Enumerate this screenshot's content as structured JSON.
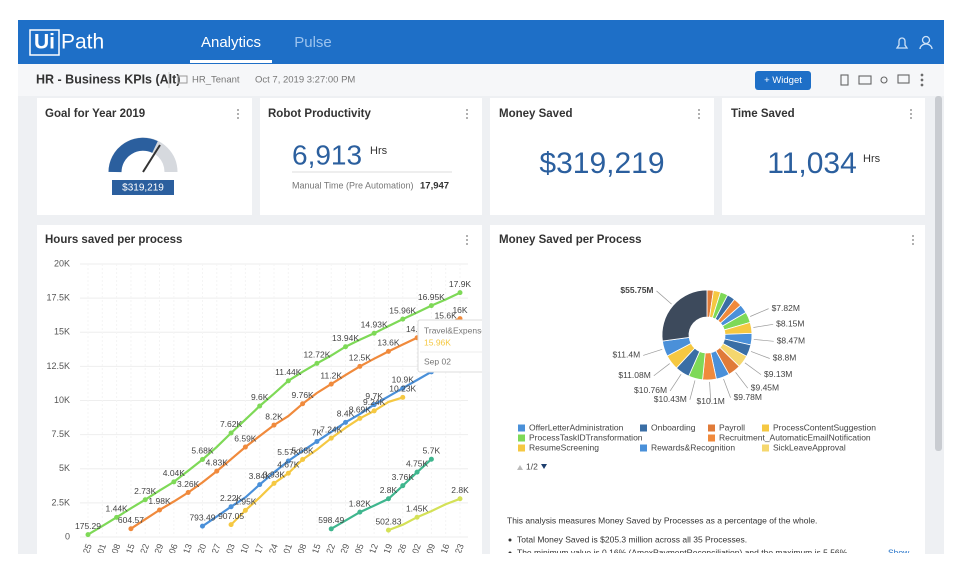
{
  "header": {
    "logo_a": "Ui",
    "logo_b": "Path",
    "tabs": [
      "Analytics",
      "Pulse"
    ]
  },
  "toolbar": {
    "title": "HR - Business KPIs (Alt)",
    "tenant": "HR_Tenant",
    "date": "Oct 7, 2019 3:27:00 PM",
    "button": "+ Widget"
  },
  "cards": {
    "goal": {
      "title": "Goal for Year 2019",
      "value": "$319,219"
    },
    "robot": {
      "title": "Robot Productivity",
      "value": "6,913",
      "unit": "Hrs",
      "note": "Manual Time (Pre Automation)",
      "note_value": "17,947"
    },
    "money": {
      "title": "Money Saved",
      "value": "$319,219"
    },
    "time": {
      "title": "Time Saved",
      "value": "11,034",
      "unit": "Hrs"
    }
  },
  "chart_data": [
    {
      "type": "line",
      "title": "Hours saved per process",
      "categories": [
        "25",
        "01",
        "08",
        "15",
        "22",
        "29",
        "06",
        "13",
        "20",
        "27",
        "03",
        "10",
        "17",
        "24",
        "01",
        "08",
        "15",
        "22",
        "29",
        "05",
        "12",
        "19",
        "26",
        "02",
        "09",
        "16",
        "23"
      ],
      "ylim": [
        0,
        20000
      ],
      "yticks": [
        0,
        {
          "value": 2500,
          "label": "2.5K"
        },
        {
          "value": 5000,
          "label": "5K"
        },
        {
          "value": 7500,
          "label": "7.5K"
        },
        {
          "value": 10000,
          "label": "10K"
        },
        {
          "value": 12500,
          "label": "12.5K"
        },
        {
          "value": 15000,
          "label": "15K"
        },
        {
          "value": 17500,
          "label": "17.5K"
        },
        {
          "value": 20000,
          "label": "20K"
        }
      ],
      "grid": true,
      "series": [
        {
          "color": "#7ed957",
          "values": [
            175.29,
            800,
            1440,
            2100,
            2730,
            3400,
            4040,
            4850,
            5680,
            6600,
            7620,
            8600,
            9600,
            10500,
            11440,
            12100,
            12720,
            13300,
            13940,
            14450,
            14930,
            15450,
            15960,
            16450,
            16950,
            17400,
            17900
          ],
          "value_labels": [
            "175.29",
            null,
            "1.44K",
            null,
            "2.73K",
            null,
            "4.04K",
            null,
            "5.68K",
            null,
            "7.62K",
            null,
            "9.6K",
            null,
            "11.44K",
            null,
            "12.72K",
            null,
            "13.94K",
            null,
            "14.93K",
            null,
            "15.96K",
            null,
            "16.95K",
            null,
            "17.9K"
          ]
        },
        {
          "color": "#f08a3c",
          "values": [
            null,
            null,
            null,
            604.57,
            1300,
            1980,
            2600,
            3260,
            4000,
            4830,
            5700,
            6590,
            7400,
            8200,
            8860,
            9760,
            10550,
            11200,
            11860,
            12500,
            13060,
            13600,
            14100,
            14600,
            15100,
            15600,
            16000
          ],
          "value_labels": [
            null,
            null,
            null,
            "604.57",
            null,
            "1.98K",
            null,
            "3.26K",
            null,
            "4.83K",
            null,
            "6.59K",
            null,
            "8.2K",
            null,
            "9.76K",
            null,
            "11.2K",
            null,
            "12.5K",
            null,
            "13.6K",
            null,
            "14.6K",
            null,
            "15.6K",
            "16K"
          ]
        },
        {
          "color": "#4a90d9",
          "values": [
            null,
            null,
            null,
            null,
            null,
            null,
            null,
            null,
            793.49,
            1500,
            2220,
            2900,
            3840,
            4730,
            5570,
            6300,
            7000,
            7700,
            8400,
            9000,
            9700,
            10300,
            10900,
            11500,
            12100,
            12800,
            13400
          ],
          "value_labels": [
            null,
            null,
            null,
            null,
            null,
            null,
            null,
            null,
            "793.49",
            null,
            "2.22K",
            null,
            "3.84K",
            null,
            "5.57K",
            null,
            "7K",
            null,
            "8.4K",
            null,
            "9.7K",
            null,
            "10.9K",
            null,
            "12.1K",
            null,
            "13.4K"
          ]
        },
        {
          "color": "#f5c842",
          "values": [
            null,
            null,
            null,
            null,
            null,
            null,
            null,
            null,
            null,
            null,
            907.05,
            1950,
            2900,
            3930,
            4670,
            5680,
            6400,
            7240,
            8000,
            8690,
            9240,
            9900,
            10230,
            null,
            null,
            null,
            null
          ],
          "value_labels": [
            null,
            null,
            null,
            null,
            null,
            null,
            null,
            null,
            null,
            null,
            "907.05",
            "1.95K",
            null,
            "3.93K",
            "4.67K",
            "5.68K",
            null,
            "7.24K",
            null,
            "8.69K",
            "9.24K",
            null,
            "10.23K",
            null,
            null,
            null,
            null
          ]
        },
        {
          "color": "#3fb68e",
          "values": [
            null,
            null,
            null,
            null,
            null,
            null,
            null,
            null,
            null,
            null,
            null,
            null,
            null,
            null,
            null,
            null,
            null,
            598.49,
            1200,
            1820,
            2300,
            2800,
            3760,
            4750,
            5700,
            null,
            null
          ],
          "value_labels": [
            null,
            null,
            null,
            null,
            null,
            null,
            null,
            null,
            null,
            null,
            null,
            null,
            null,
            null,
            null,
            null,
            null,
            "598.49",
            null,
            "1.82K",
            null,
            "2.8K",
            "3.76K",
            "4.75K",
            "5.7K",
            null,
            null
          ]
        },
        {
          "color": "#d4e157",
          "values": [
            null,
            null,
            null,
            null,
            null,
            null,
            null,
            null,
            null,
            null,
            null,
            null,
            null,
            null,
            null,
            null,
            null,
            null,
            null,
            null,
            null,
            502.83,
            900,
            1450,
            1900,
            2400,
            2800
          ],
          "value_labels": [
            null,
            null,
            null,
            null,
            null,
            null,
            null,
            null,
            null,
            null,
            null,
            null,
            null,
            null,
            null,
            null,
            null,
            null,
            null,
            null,
            null,
            "502.83",
            null,
            "1.45K",
            null,
            null,
            "2.8K"
          ]
        }
      ],
      "tooltip": {
        "title": "Travel&Expense",
        "value": "15.96K",
        "date": "Sep 02"
      }
    },
    {
      "type": "pie",
      "title": "Money Saved per Process",
      "values": [
        4700000,
        5300000,
        5600000,
        5900000,
        6200000,
        6500000,
        7820000,
        8150000,
        8470000,
        8800000,
        9130000,
        9450000,
        9780000,
        10100000,
        10430000,
        10760000,
        11080000,
        11400000,
        55750000
      ],
      "value_labels": [
        null,
        null,
        null,
        null,
        null,
        null,
        "$7.82M",
        "$8.15M",
        "$8.47M",
        "$8.8M",
        "$9.13M",
        "$9.45M",
        "$9.78M",
        "$10.1M",
        "$10.43M",
        "$10.76M",
        "$11.08M",
        "$11.4M",
        "$55.75M"
      ],
      "colors": [
        "#e07b39",
        "#f5c842",
        "#7ed957",
        "#3a6ea5",
        "#f08a3c",
        "#4a90d9",
        "#7ed957",
        "#f5c842",
        "#4a90d9",
        "#3a6ea5",
        "#f5d76e",
        "#e07b39",
        "#4a90d9",
        "#f08a3c",
        "#7ed957",
        "#3a6ea5",
        "#f5c842",
        "#4a90d9",
        "#3d4a5c"
      ],
      "legend": [
        {
          "name": "OfferLetterAdministration",
          "color": "#4a90d9"
        },
        {
          "name": "Onboarding",
          "color": "#3a6ea5"
        },
        {
          "name": "Payroll",
          "color": "#e07b39"
        },
        {
          "name": "ProcessContentSuggestion",
          "color": "#f5c842"
        },
        {
          "name": "ProcessTaskIDTransformation",
          "color": "#7ed957"
        },
        {
          "name": "Recruitment_AutomaticEmailNotification",
          "color": "#f08a3c"
        },
        {
          "name": "ResumeScreening",
          "color": "#f5c842"
        },
        {
          "name": "Rewards&Recognition",
          "color": "#4a90d9"
        },
        {
          "name": "SickLeaveApproval",
          "color": "#f5d76e"
        }
      ],
      "legend_page": "1/2",
      "summary": "This analysis measures Money Saved by Processes as a percentage of the whole.",
      "bullets": [
        "Total Money Saved is $205.3 million across all 35 Processes.",
        "The minimum value is 0.16% (AmexPaymentReconciliation) and the maximum is 5.56%"
      ],
      "more": "Show"
    }
  ]
}
